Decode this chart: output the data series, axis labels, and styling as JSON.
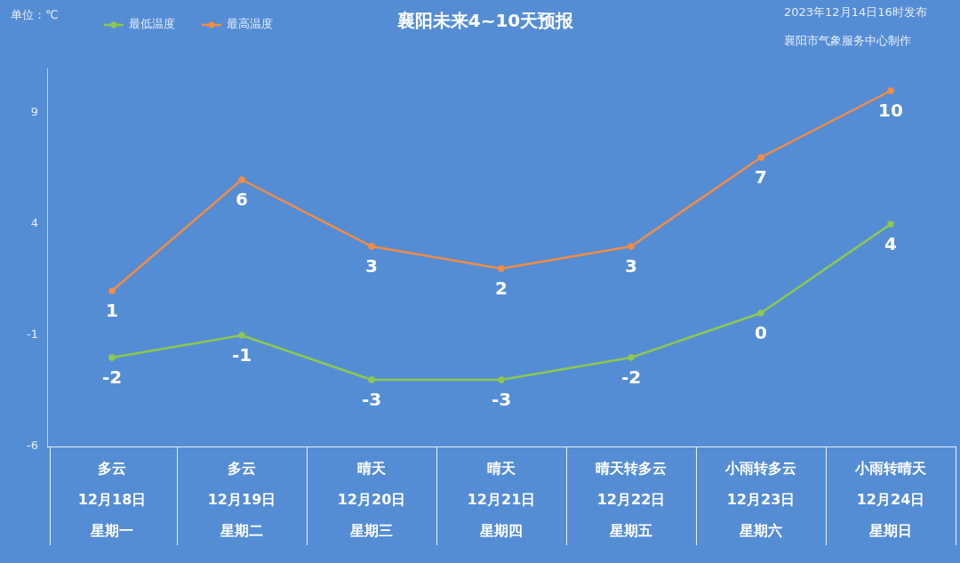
{
  "chart_data": {
    "type": "line",
    "title": "襄阳未来4~10天预报",
    "ylabel": "单位：℃",
    "annotations": [
      "2023年12月14日16时发布",
      "襄阳市气象服务中心制作"
    ],
    "categories": [
      "多云12月18日星期一",
      "多云12月19日星期二",
      "晴天12月20日星期三",
      "晴天12月21日星期四",
      "晴天转多云12月22日星期五",
      "小雨转多云12月23日星期六",
      "小雨转晴天12月24日星期日"
    ],
    "series": [
      {
        "name": "最低温度",
        "color": "#8cc94e",
        "values": [
          -2,
          -1,
          -3,
          -3,
          -2,
          0,
          4
        ]
      },
      {
        "name": "最高温度",
        "color": "#f28c44",
        "values": [
          1,
          6,
          3,
          2,
          3,
          7,
          10
        ]
      }
    ],
    "ylim": [
      -6,
      11
    ],
    "yticks": [
      -6,
      -1,
      4,
      9
    ],
    "legend": "top left",
    "marker": "circle",
    "line_style": "solid",
    "data_labels": true
  }
}
